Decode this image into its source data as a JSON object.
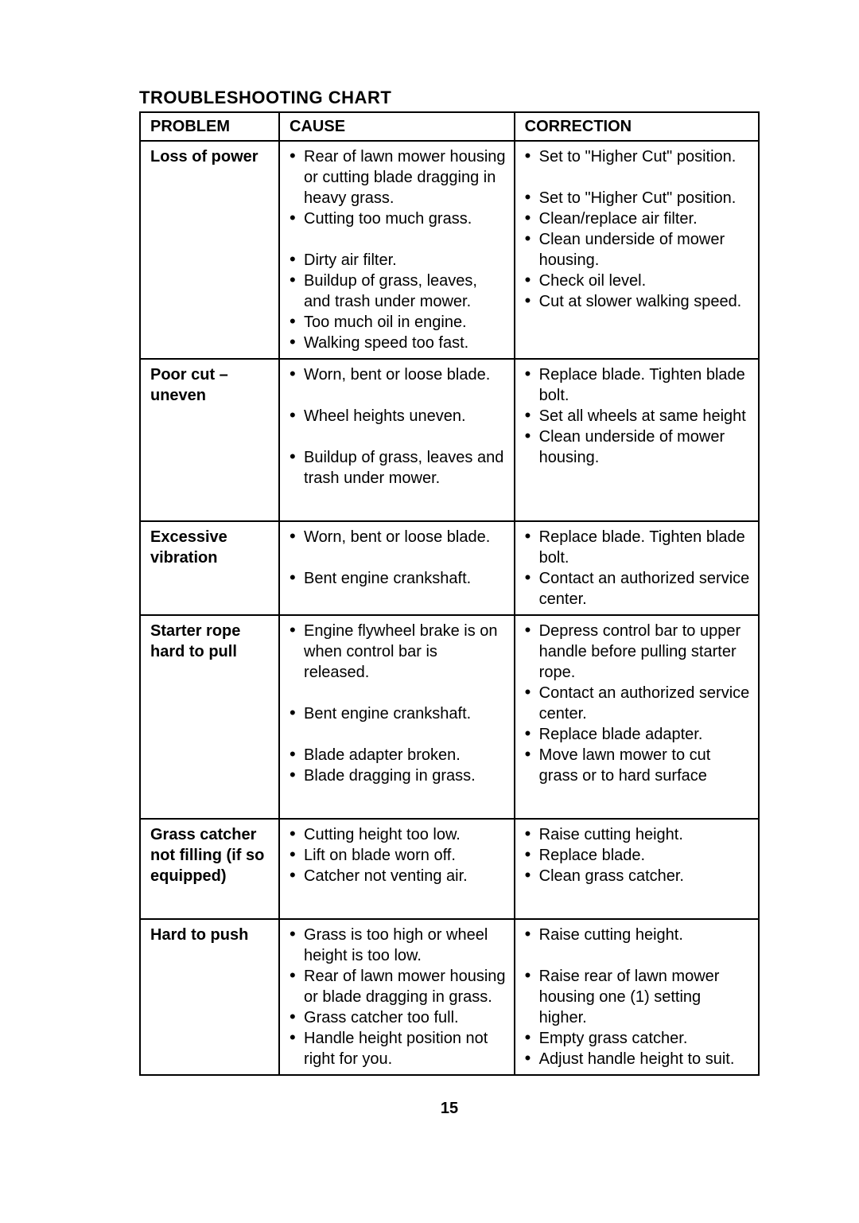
{
  "title": "TROUBLESHOOTING CHART",
  "headers": {
    "problem": "PROBLEM",
    "cause": "CAUSE",
    "correction": "CORRECTION"
  },
  "rows": [
    {
      "problem": "Loss of power",
      "causes": [
        "Rear of lawn mower housing or cutting blade dragging in heavy grass.",
        "Cutting too much grass.",
        "",
        "Dirty air filter.",
        "Buildup of grass, leaves, and trash under mower.",
        "Too much oil in engine.",
        "Walking speed too fast."
      ],
      "corrections": [
        "Set to \"Higher Cut\" position.",
        "",
        "Set to \"Higher Cut\" position.",
        "Clean/replace air filter.",
        "Clean underside of mower housing.",
        "Check oil level.",
        "Cut at slower walking speed."
      ]
    },
    {
      "problem": "Poor cut – uneven",
      "causes": [
        "Worn, bent or loose blade.",
        "",
        "Wheel heights  uneven.",
        "",
        "Buildup of grass, leaves and trash under mower."
      ],
      "corrections": [
        "Replace blade. Tighten blade bolt.",
        "Set all wheels at same height",
        "Clean underside of mower housing."
      ]
    },
    {
      "problem": "Excessive vibration",
      "causes": [
        "Worn, bent or loose blade.",
        "",
        "Bent engine crankshaft."
      ],
      "corrections": [
        "Replace blade. Tighten blade bolt.",
        "Contact an authorized service center."
      ]
    },
    {
      "problem": "Starter rope hard to pull",
      "causes": [
        "Engine flywheel brake is on when control bar is released.",
        "",
        "Bent engine crankshaft.",
        "",
        "Blade adapter broken.",
        "Blade dragging in grass."
      ],
      "corrections": [
        "Depress control bar to upper handle before pulling starter rope.",
        "Contact an authorized service center.",
        "Replace blade adapter.",
        "Move lawn mower to cut grass or to hard surface"
      ]
    },
    {
      "problem": "Grass catcher not filling (if so equipped)",
      "causes": [
        "Cutting height too low.",
        "Lift on blade worn off.",
        "Catcher not venting air."
      ],
      "corrections": [
        "Raise cutting height.",
        "Replace blade.",
        "Clean grass catcher."
      ]
    },
    {
      "problem": "Hard to push",
      "causes": [
        "Grass is too high or wheel height is too low.",
        "Rear of lawn mower housing or blade dragging in grass.",
        "Grass catcher too full.",
        "Handle height position not right for you."
      ],
      "corrections": [
        "Raise cutting height.",
        "",
        "Raise rear of lawn mower housing one (1)   setting higher.",
        "Empty grass catcher.",
        "Adjust handle height to suit."
      ]
    }
  ],
  "pageNumber": "15"
}
